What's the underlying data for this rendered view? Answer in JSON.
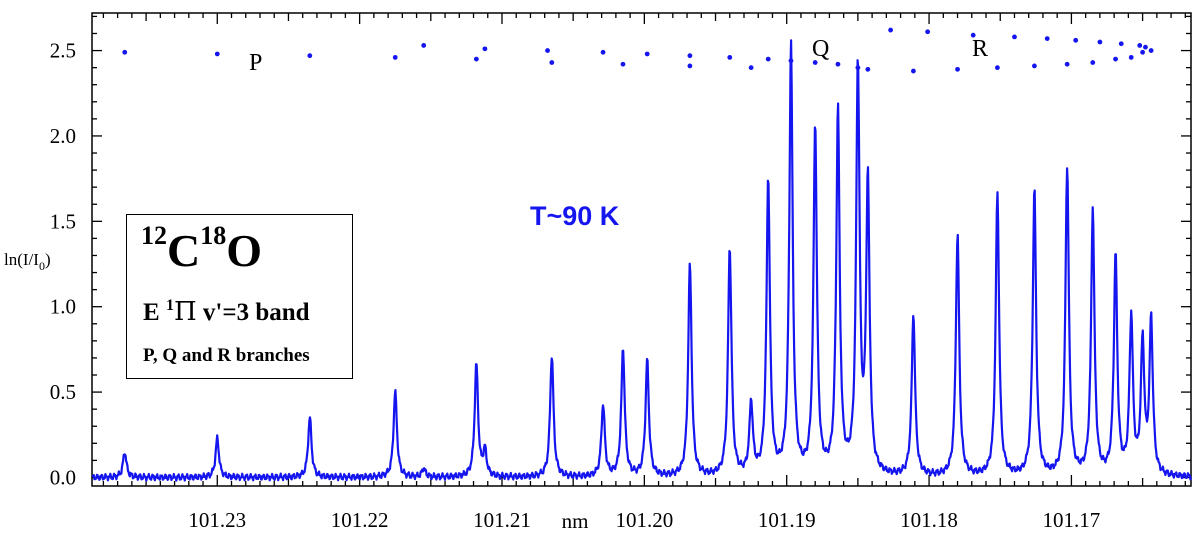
{
  "chart_data": {
    "type": "line",
    "xlabel": "nm",
    "ylabel_main": "ln(I/I",
    "ylabel_sub": "0",
    "ylabel_close": ")",
    "xlim": [
      101.2388,
      101.1616
    ],
    "ylim": [
      -0.05,
      2.72
    ],
    "x_ticks": [
      101.23,
      101.22,
      101.21,
      101.2,
      101.19,
      101.18,
      101.17
    ],
    "x_tick_labels": [
      "101.23",
      "101.22",
      "101.21",
      "101.20",
      "101.19",
      "101.18",
      "101.17"
    ],
    "y_ticks": [
      0.0,
      0.5,
      1.0,
      1.5,
      2.0,
      2.5
    ],
    "y_tick_labels": [
      "0.0",
      "0.5",
      "1.0",
      "1.5",
      "2.0",
      "2.5"
    ],
    "series": [
      {
        "color": "#1515f0",
        "baseline": 0.0,
        "peaks": [
          {
            "x": 101.2365,
            "y": 0.15
          },
          {
            "x": 101.23,
            "y": 0.23
          },
          {
            "x": 101.2235,
            "y": 0.35
          },
          {
            "x": 101.2175,
            "y": 0.5
          },
          {
            "x": 101.2155,
            "y": 0.05
          },
          {
            "x": 101.2118,
            "y": 0.66
          },
          {
            "x": 101.2112,
            "y": 0.15
          },
          {
            "x": 101.2065,
            "y": 0.71
          },
          {
            "x": 101.2029,
            "y": 0.42
          },
          {
            "x": 101.2015,
            "y": 0.75
          },
          {
            "x": 101.1998,
            "y": 0.68
          },
          {
            "x": 101.1968,
            "y": 1.24
          },
          {
            "x": 101.194,
            "y": 1.34
          },
          {
            "x": 101.1925,
            "y": 0.42
          },
          {
            "x": 101.1913,
            "y": 1.74
          },
          {
            "x": 101.1897,
            "y": 2.52
          },
          {
            "x": 101.188,
            "y": 2.05
          },
          {
            "x": 101.1864,
            "y": 2.14
          },
          {
            "x": 101.185,
            "y": 2.38
          },
          {
            "x": 101.1843,
            "y": 1.71
          },
          {
            "x": 101.1811,
            "y": 0.95
          },
          {
            "x": 101.178,
            "y": 1.41
          },
          {
            "x": 101.1752,
            "y": 1.65
          },
          {
            "x": 101.1726,
            "y": 1.68
          },
          {
            "x": 101.1703,
            "y": 1.81
          },
          {
            "x": 101.1685,
            "y": 1.56
          },
          {
            "x": 101.1669,
            "y": 1.29
          },
          {
            "x": 101.1658,
            "y": 0.92
          },
          {
            "x": 101.165,
            "y": 0.77
          },
          {
            "x": 101.1644,
            "y": 0.91
          }
        ]
      }
    ],
    "branch_marks": [
      {
        "x": 101.2365,
        "y": 2.49
      },
      {
        "x": 101.23,
        "y": 2.48
      },
      {
        "x": 101.2235,
        "y": 2.47
      },
      {
        "x": 101.2175,
        "y": 2.46
      },
      {
        "x": 101.2155,
        "y": 2.53
      },
      {
        "x": 101.2118,
        "y": 2.45
      },
      {
        "x": 101.2112,
        "y": 2.51
      },
      {
        "x": 101.2068,
        "y": 2.5
      },
      {
        "x": 101.2065,
        "y": 2.43
      },
      {
        "x": 101.2029,
        "y": 2.49
      },
      {
        "x": 101.2015,
        "y": 2.42
      },
      {
        "x": 101.1998,
        "y": 2.48
      },
      {
        "x": 101.1968,
        "y": 2.47
      },
      {
        "x": 101.1968,
        "y": 2.41
      },
      {
        "x": 101.194,
        "y": 2.46
      },
      {
        "x": 101.1925,
        "y": 2.4
      },
      {
        "x": 101.1913,
        "y": 2.45
      },
      {
        "x": 101.1897,
        "y": 2.44
      },
      {
        "x": 101.188,
        "y": 2.43
      },
      {
        "x": 101.1864,
        "y": 2.42
      },
      {
        "x": 101.185,
        "y": 2.4
      },
      {
        "x": 101.1843,
        "y": 2.39
      },
      {
        "x": 101.1827,
        "y": 2.62
      },
      {
        "x": 101.1811,
        "y": 2.38
      },
      {
        "x": 101.1801,
        "y": 2.61
      },
      {
        "x": 101.178,
        "y": 2.39
      },
      {
        "x": 101.1769,
        "y": 2.59
      },
      {
        "x": 101.1752,
        "y": 2.4
      },
      {
        "x": 101.174,
        "y": 2.58
      },
      {
        "x": 101.1726,
        "y": 2.41
      },
      {
        "x": 101.1717,
        "y": 2.57
      },
      {
        "x": 101.1703,
        "y": 2.42
      },
      {
        "x": 101.1697,
        "y": 2.56
      },
      {
        "x": 101.1685,
        "y": 2.43
      },
      {
        "x": 101.168,
        "y": 2.55
      },
      {
        "x": 101.1669,
        "y": 2.45
      },
      {
        "x": 101.1665,
        "y": 2.54
      },
      {
        "x": 101.1658,
        "y": 2.46
      },
      {
        "x": 101.1652,
        "y": 2.53
      },
      {
        "x": 101.165,
        "y": 2.49
      },
      {
        "x": 101.1648,
        "y": 2.52
      },
      {
        "x": 101.1644,
        "y": 2.5
      }
    ],
    "annotations": {
      "branch_p": "P",
      "branch_q": "Q",
      "branch_r": "R",
      "temperature": "T~90 K"
    },
    "legend_box": {
      "molecule_mass1": "12",
      "molecule_atom1": "C",
      "molecule_mass2": "18",
      "molecule_atom2": "O",
      "band_state": "E ",
      "band_mult": "1",
      "band_symbol": "Π",
      "band_rest": " v'=3 band",
      "branches_text": "P, Q and R branches",
      "position": "left"
    }
  }
}
